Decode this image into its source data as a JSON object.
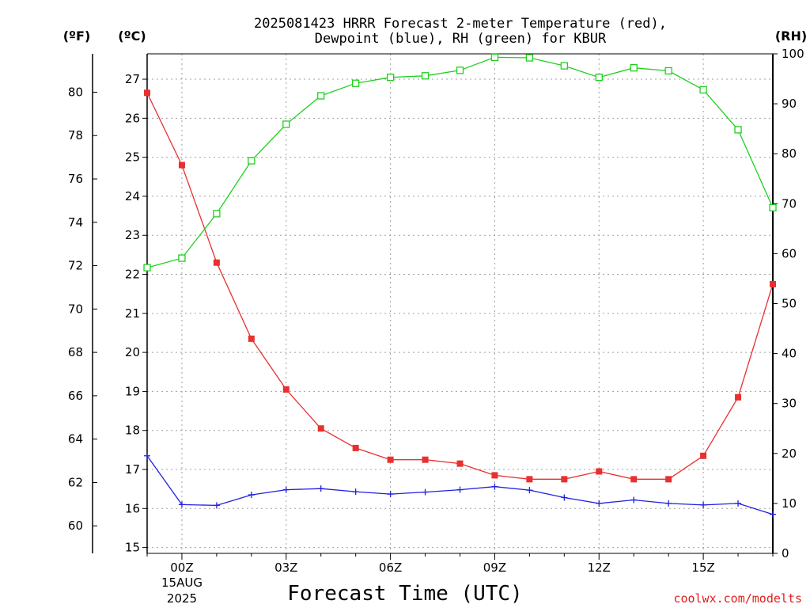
{
  "chart_data": {
    "type": "line",
    "title_line1": "2025081423 HRRR Forecast 2-meter Temperature (red),",
    "title_line2": "Dewpoint (blue), RH (green) for KBUR",
    "xlabel": "Forecast Time (UTC)",
    "x_ticks": [
      "00Z",
      "03Z",
      "06Z",
      "09Z",
      "12Z",
      "15Z"
    ],
    "x_date_lines": [
      "15AUG",
      "2025"
    ],
    "unit_labels": {
      "fahrenheit": "(ºF)",
      "celsius": "(ºC)",
      "rh": "(RH)"
    },
    "celsius_ticks": [
      15,
      16,
      17,
      18,
      19,
      20,
      21,
      22,
      23,
      24,
      25,
      26,
      27
    ],
    "fahrenheit_ticks": [
      60,
      62,
      64,
      66,
      68,
      70,
      72,
      74,
      76,
      78,
      80
    ],
    "rh_ticks": [
      0,
      10,
      20,
      30,
      40,
      50,
      60,
      70,
      80,
      90,
      100
    ],
    "x": [
      "23Z",
      "00Z",
      "01Z",
      "02Z",
      "03Z",
      "04Z",
      "05Z",
      "06Z",
      "07Z",
      "08Z",
      "09Z",
      "10Z",
      "11Z",
      "12Z",
      "13Z",
      "14Z",
      "15Z",
      "16Z",
      "17Z"
    ],
    "ylim_celsius": [
      14.85,
      27.65
    ],
    "ylim_rh": [
      0,
      100
    ],
    "grid": true,
    "series": [
      {
        "name": "Temperature",
        "axis": "celsius",
        "color": "#e83030",
        "marker": "filled-square",
        "values": [
          26.65,
          24.8,
          22.3,
          20.35,
          19.05,
          18.05,
          17.55,
          17.25,
          17.25,
          17.15,
          16.85,
          16.75,
          16.75,
          16.95,
          16.75,
          16.75,
          17.35,
          18.85,
          21.75
        ]
      },
      {
        "name": "Dewpoint",
        "axis": "celsius",
        "color": "#2020e0",
        "marker": "plus",
        "values": [
          17.35,
          16.1,
          16.08,
          16.35,
          16.48,
          16.51,
          16.43,
          16.37,
          16.42,
          16.48,
          16.56,
          16.47,
          16.28,
          16.13,
          16.22,
          16.13,
          16.09,
          16.13,
          15.85
        ]
      },
      {
        "name": "RH",
        "axis": "rh",
        "color": "#20d020",
        "marker": "open-square",
        "values": [
          57.2,
          59.1,
          68.0,
          78.6,
          85.9,
          91.6,
          94.1,
          95.3,
          95.6,
          96.7,
          99.3,
          99.2,
          97.6,
          95.3,
          97.2,
          96.6,
          92.8,
          84.8,
          69.2
        ]
      }
    ]
  },
  "credit": "coolwx.com/modelts"
}
